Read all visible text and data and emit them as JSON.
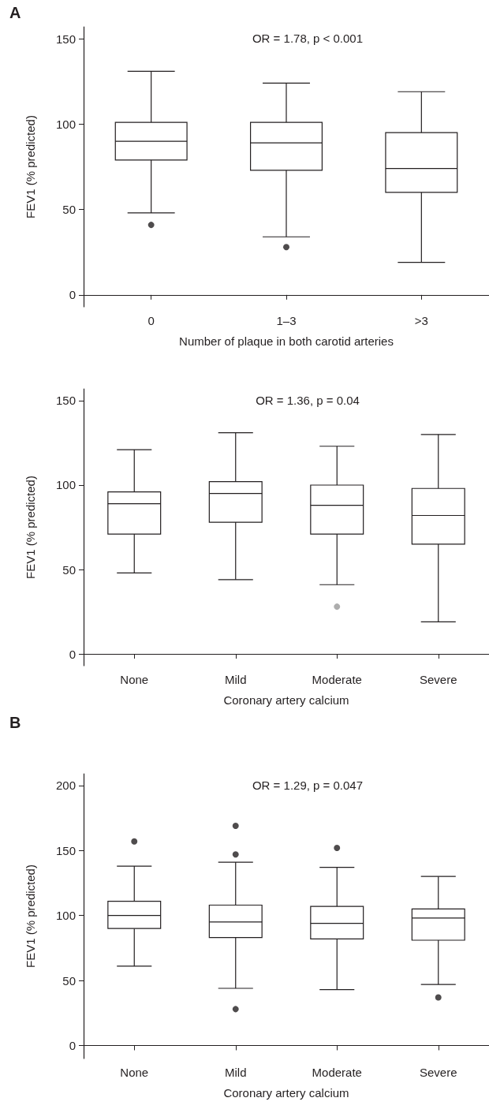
{
  "chart_data": [
    {
      "type": "box",
      "title": "OR = 1.78, p < 0.001",
      "xlabel": "Number of plaque in both carotid arteries",
      "ylabel": "FEV1 (% predicted)",
      "annotations": [
        "A"
      ],
      "categories": [
        "0",
        "1–3",
        ">3"
      ],
      "ylim": [
        -7,
        157
      ],
      "yticks": [
        0,
        50,
        100,
        150
      ],
      "grid": false,
      "series": [
        {
          "type": "box",
          "color": "#231f20",
          "boxes": [
            {
              "low": 48,
              "q1": 79,
              "median": 90,
              "q3": 101,
              "high": 131
            },
            {
              "low": 34,
              "q1": 73,
              "median": 89,
              "q3": 101,
              "high": 124
            },
            {
              "low": 19,
              "q1": 60,
              "median": 74,
              "q3": 95,
              "high": 119
            }
          ]
        },
        {
          "type": "scatter",
          "color": "#231f20",
          "x": [
            "0",
            "1–3"
          ],
          "values": [
            41,
            28
          ]
        }
      ]
    },
    {
      "type": "box",
      "title": "OR = 1.36, p = 0.04",
      "xlabel": "Coronary artery calcium",
      "ylabel": "FEV1 (% predicted)",
      "categories": [
        "None",
        "Mild",
        "Moderate",
        "Severe"
      ],
      "ylim": [
        -7,
        157
      ],
      "yticks": [
        0,
        50,
        100,
        150
      ],
      "grid": false,
      "series": [
        {
          "type": "box",
          "color": "#231f20",
          "boxes": [
            {
              "low": 48,
              "q1": 71,
              "median": 89,
              "q3": 96,
              "high": 121
            },
            {
              "low": 44,
              "q1": 78,
              "median": 95,
              "q3": 102,
              "high": 131
            },
            {
              "low": 41,
              "q1": 71,
              "median": 88,
              "q3": 100,
              "high": 123
            },
            {
              "low": 19,
              "q1": 65,
              "median": 82,
              "q3": 98,
              "high": 130
            }
          ]
        },
        {
          "type": "scatter",
          "color": "#999999",
          "x": [
            "Moderate"
          ],
          "values": [
            28
          ]
        }
      ]
    },
    {
      "type": "box",
      "title": "OR = 1.29, p = 0.047",
      "xlabel": "Coronary artery calcium",
      "ylabel": "FEV1 (% predicted)",
      "annotations": [
        "B"
      ],
      "categories": [
        "None",
        "Mild",
        "Moderate",
        "Severe"
      ],
      "ylim": [
        -10,
        209
      ],
      "yticks": [
        0,
        50,
        100,
        150,
        200
      ],
      "grid": false,
      "series": [
        {
          "type": "box",
          "color": "#231f20",
          "boxes": [
            {
              "low": 61,
              "q1": 90,
              "median": 100,
              "q3": 111,
              "high": 138
            },
            {
              "low": 44,
              "q1": 83,
              "median": 95,
              "q3": 108,
              "high": 141
            },
            {
              "low": 43,
              "q1": 82,
              "median": 94,
              "q3": 107,
              "high": 137
            },
            {
              "low": 47,
              "q1": 81,
              "median": 98,
              "q3": 105,
              "high": 130
            }
          ]
        },
        {
          "type": "scatter",
          "color": "#231f20",
          "x": [
            "None",
            "Mild",
            "Mild",
            "Mild",
            "Moderate",
            "Severe"
          ],
          "values": [
            157,
            169,
            147,
            28,
            152,
            37
          ]
        }
      ]
    }
  ]
}
